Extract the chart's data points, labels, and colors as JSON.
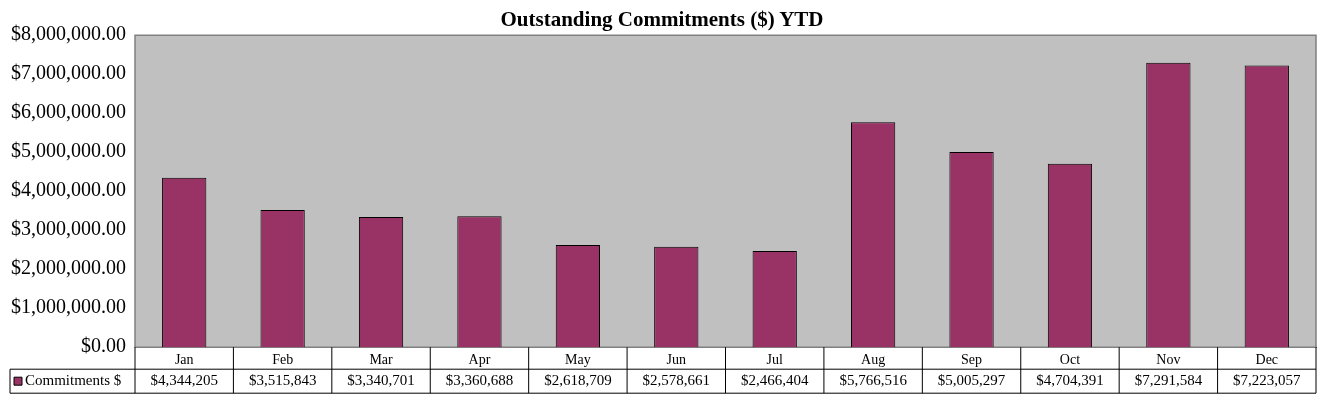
{
  "chart_data": {
    "type": "bar",
    "title": "Outstanding Commitments ($) YTD",
    "categories": [
      "Jan",
      "Feb",
      "Mar",
      "Apr",
      "May",
      "Jun",
      "Jul",
      "Aug",
      "Sep",
      "Oct",
      "Nov",
      "Dec"
    ],
    "series": [
      {
        "name": "Commitments $",
        "color": "#993366",
        "values": [
          4344205,
          3515843,
          3340701,
          3360688,
          2618709,
          2578661,
          2466404,
          5766516,
          5005297,
          4704391,
          7291584,
          7223057
        ],
        "value_labels": [
          "$4,344,205",
          "$3,515,843",
          "$3,340,701",
          "$3,360,688",
          "$2,618,709",
          "$2,578,661",
          "$2,466,404",
          "$5,766,516",
          "$5,005,297",
          "$4,704,391",
          "$7,291,584",
          "$7,223,057"
        ]
      }
    ],
    "ylim": [
      0,
      8000000
    ],
    "yticks": [
      {
        "value": 0,
        "label": "$0.00"
      },
      {
        "value": 1000000,
        "label": "$1,000,000.00"
      },
      {
        "value": 2000000,
        "label": "$2,000,000.00"
      },
      {
        "value": 3000000,
        "label": "$3,000,000.00"
      },
      {
        "value": 4000000,
        "label": "$4,000,000.00"
      },
      {
        "value": 5000000,
        "label": "$5,000,000.00"
      },
      {
        "value": 6000000,
        "label": "$6,000,000.00"
      },
      {
        "value": 7000000,
        "label": "$7,000,000.00"
      },
      {
        "value": 8000000,
        "label": "$8,000,000.00"
      }
    ],
    "grid": false
  }
}
